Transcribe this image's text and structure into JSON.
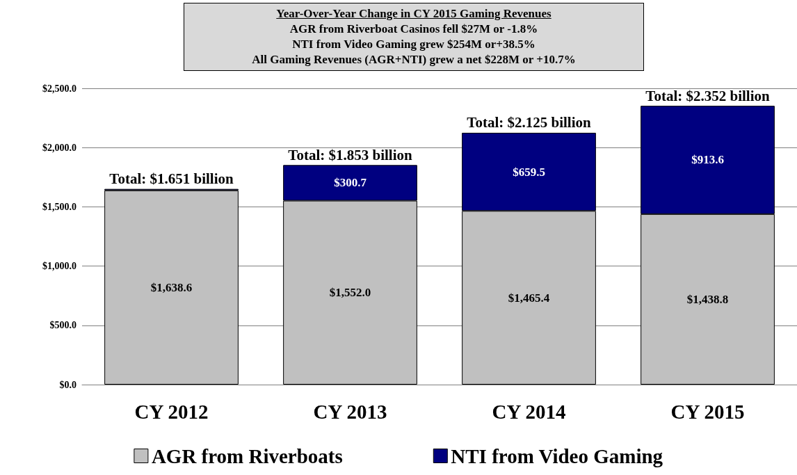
{
  "chart_data": {
    "type": "bar",
    "stacked": true,
    "title": "Year-Over-Year Change in CY 2015 Gaming Revenues",
    "annotations": [
      "AGR from Riverboat Casinos fell $27M or -1.8%",
      "NTI from Video Gaming grew $254M or+38.5%",
      "All Gaming Revenues (AGR+NTI) grew a net $228M or +10.7%"
    ],
    "categories": [
      "CY 2012",
      "CY 2013",
      "CY 2014",
      "CY 2015"
    ],
    "series": [
      {
        "name": "AGR from Riverboats",
        "color": "#c0c0c0",
        "values": [
          1638.6,
          1552.0,
          1465.4,
          1438.8
        ],
        "value_labels": [
          "$1,638.6",
          "$1,552.0",
          "$1,465.4",
          "$1,438.8"
        ]
      },
      {
        "name": "NTI from Video Gaming",
        "color": "#000080",
        "values": [
          12.4,
          300.7,
          659.5,
          913.6
        ],
        "value_labels": [
          null,
          "$300.7",
          "$659.5",
          "$913.6"
        ]
      }
    ],
    "totals": [
      "Total: $1.651 billion",
      "Total: $1.853 billion",
      "Total: $2.125 billion",
      "Total: $2.352 billion"
    ],
    "ylim": [
      0,
      2500
    ],
    "yticks": [
      {
        "value": 0,
        "label": "$0.0"
      },
      {
        "value": 500,
        "label": "$500.0"
      },
      {
        "value": 1000,
        "label": "$1,000.0"
      },
      {
        "value": 1500,
        "label": "$1,500.0"
      },
      {
        "value": 2000,
        "label": "$2,000.0"
      },
      {
        "value": 2500,
        "label": "$2,500.0"
      }
    ],
    "grid": "y",
    "legend": "bottom"
  }
}
